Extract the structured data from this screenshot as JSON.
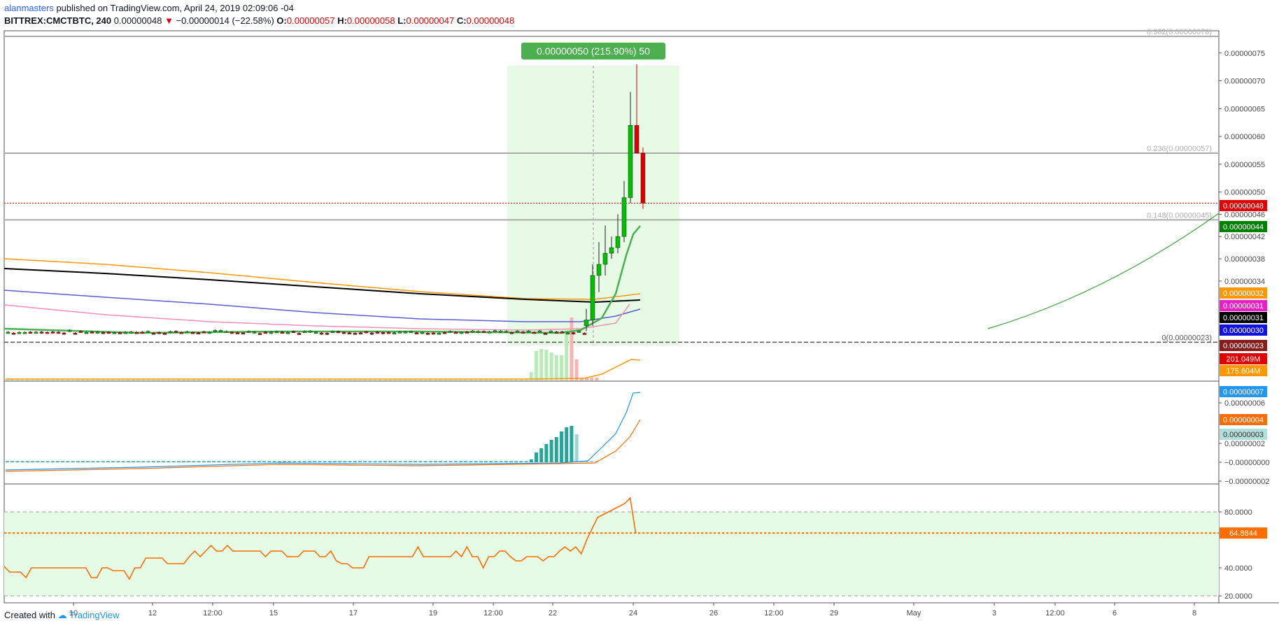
{
  "header": {
    "author": "alanmasters",
    "published_text": "published on TradingView.com, April 24, 2019 02:09:06 -04"
  },
  "ohlc": {
    "symbol": "BITTREX:CMCTBTC, 240",
    "last": "0.00000048",
    "arrow": "▼",
    "change": "−0.00000014 (−22.58%)",
    "o_label": "O:",
    "o": "0.00000057",
    "h_label": "H:",
    "h": "0.00000058",
    "l_label": "L:",
    "l": "0.00000047",
    "c_label": "C:",
    "c": "0.00000048"
  },
  "measure_label": "0.00000050 (215.90%) 50",
  "footer": {
    "created_with": "Created with",
    "brand": "TradingView"
  },
  "colors": {
    "up": "#00c000",
    "down": "#e00000",
    "ema_orange": "#ff9800",
    "sma_black": "#000000",
    "ema_blue": "#5b5bd6",
    "ema_pink": "#f48fb1",
    "ema_green": "#4caf50",
    "measure_green": "#e0f9e0",
    "rsi_band": "#e5fbe5",
    "macd_blue": "#2196f3",
    "macd_orange": "#ff6d00"
  },
  "chart_data": [
    {
      "type": "candlestick",
      "pane": "price",
      "y_range": [
        1.6e-07,
        7.9e-07
      ],
      "price_ticks": [
        "0.00000075",
        "0.00000070",
        "0.00000065",
        "0.00000060",
        "0.00000055",
        "0.00000050",
        "0.00000046",
        "0.00000042",
        "0.00000038",
        "0.00000034"
      ],
      "x_ticks": [
        "10",
        "12",
        "12:00",
        "15",
        "17",
        "19",
        "12:00",
        "22",
        "24",
        "26",
        "12:00",
        "29",
        "May",
        "3",
        "12:00",
        "6",
        "8"
      ],
      "fib_levels": [
        {
          "label": "0.382(0.00000078)",
          "value": 7.8e-07
        },
        {
          "label": "0.236(0.00000057)",
          "value": 5.7e-07
        },
        {
          "label": "0.148(0.00000045)",
          "value": 4.5e-07
        },
        {
          "label": "0(0.00000023)",
          "value": 2.3e-07
        }
      ],
      "last_price": 4.8e-07,
      "price_badges": [
        {
          "label": "0.00000048",
          "value": 4.8e-07,
          "color": "#e00000"
        },
        {
          "label": "0.00000044",
          "value": 4.4e-07,
          "color": "#008000"
        },
        {
          "label": "0.00000032",
          "value": 3.2e-07,
          "color": "#ff9800"
        },
        {
          "label": "0.00000031",
          "value": 3e-07,
          "color": "#e91ec7"
        },
        {
          "label": "0.00000031",
          "value": 2.9e-07,
          "color": "#000000"
        },
        {
          "label": "0.00000030",
          "value": 2.8e-07,
          "color": "#1010e0"
        },
        {
          "label": "0.00000023",
          "value": 2.3e-07,
          "color": "#8b1a1a"
        }
      ],
      "volume_badges": [
        {
          "label": "201.049M",
          "color": "#e00000"
        },
        {
          "label": "175.604M",
          "color": "#ff9800"
        }
      ],
      "spike_candles": [
        {
          "o": 2.6e-07,
          "h": 2.9e-07,
          "l": 2.5e-07,
          "c": 2.7e-07
        },
        {
          "o": 2.7e-07,
          "h": 3.7e-07,
          "l": 2.6e-07,
          "c": 3.5e-07
        },
        {
          "o": 3.5e-07,
          "h": 4.1e-07,
          "l": 3.2e-07,
          "c": 3.7e-07
        },
        {
          "o": 3.7e-07,
          "h": 4.4e-07,
          "l": 3.5e-07,
          "c": 3.9e-07
        },
        {
          "o": 3.9e-07,
          "h": 4.2e-07,
          "l": 3.8e-07,
          "c": 4e-07
        },
        {
          "o": 4e-07,
          "h": 4.6e-07,
          "l": 3.9e-07,
          "c": 4.2e-07
        },
        {
          "o": 4.2e-07,
          "h": 5.2e-07,
          "l": 4.1e-07,
          "c": 4.9e-07
        },
        {
          "o": 4.9e-07,
          "h": 6.8e-07,
          "l": 4.8e-07,
          "c": 6.2e-07
        },
        {
          "o": 6.2e-07,
          "h": 7.3e-07,
          "l": 5.7e-07,
          "c": 5.7e-07
        },
        {
          "o": 5.7e-07,
          "h": 5.8e-07,
          "l": 4.7e-07,
          "c": 4.8e-07
        }
      ]
    },
    {
      "type": "line",
      "pane": "macd",
      "ticks": [
        "0.00000006",
        "0.00000002",
        "−0.00000000",
        "−0.00000002"
      ],
      "badges": [
        {
          "label": "0.00000007",
          "color": "#2196f3"
        },
        {
          "label": "0.00000004",
          "color": "#ff6d00"
        },
        {
          "label": "0.00000003",
          "color": "#b2dfdb"
        }
      ]
    },
    {
      "type": "line",
      "pane": "rsi",
      "y_range": [
        15,
        100
      ],
      "ticks": [
        "80.0000",
        "40.0000",
        "20.0000"
      ],
      "band": [
        20,
        80
      ],
      "last": 64.8844,
      "last_label": "64.8844",
      "values": [
        41,
        37,
        37,
        37,
        33,
        40,
        40,
        40,
        40,
        40,
        40,
        40,
        40,
        40,
        40,
        40,
        33,
        33,
        40,
        40,
        38,
        38,
        38,
        32,
        40,
        40,
        47,
        47,
        47,
        47,
        43,
        43,
        43,
        43,
        48,
        52,
        48,
        52,
        56,
        52,
        52,
        56,
        52,
        52,
        52,
        52,
        52,
        52,
        48,
        52,
        52,
        52,
        48,
        48,
        48,
        52,
        52,
        52,
        48,
        48,
        52,
        45,
        43,
        43,
        40,
        40,
        40,
        48,
        48,
        48,
        48,
        48,
        48,
        48,
        48,
        48,
        55,
        48,
        48,
        48,
        48,
        48,
        48,
        52,
        48,
        55,
        48,
        48,
        40,
        48,
        48,
        52,
        52,
        48,
        45,
        45,
        48,
        48,
        48,
        45,
        48,
        48,
        52,
        55,
        52,
        55,
        50,
        60,
        68,
        76,
        78,
        80,
        82,
        84,
        86,
        90,
        64.8844
      ]
    }
  ]
}
